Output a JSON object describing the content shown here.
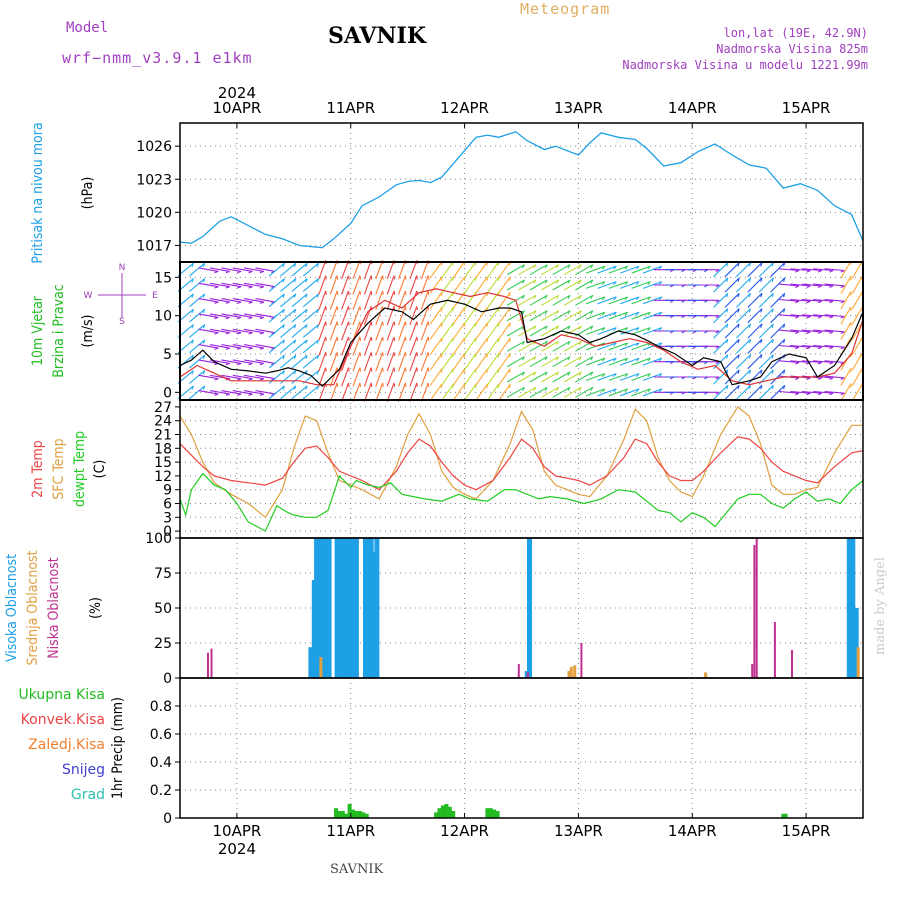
{
  "header": {
    "model_label": "Model",
    "model_value": "wrf−nmm_v3.9.1 e1km",
    "station": "SAVNIK",
    "title": "Meteogram",
    "lonlat": "lon,lat (19E, 42.9N)",
    "elevation": "Nadmorska Visina 825m",
    "elevation_model": "Nadmorska Visina u modelu 1221.99m"
  },
  "footer": {
    "station": "SAVNIK",
    "watermark": "made by Angel"
  },
  "colors": {
    "pressure": "#1ea0e6",
    "temp2m": "#ee4444",
    "sfc_temp": "#e0a040",
    "dewpoint": "#22cc22",
    "cloud_high": "#1ea0e6",
    "cloud_mid": "#e0a040",
    "cloud_low": "#c03090",
    "precip_total": "#22bb22",
    "wind_speed": "#000000",
    "gust": "#dd3333"
  },
  "chart_data": [
    {
      "type": "line",
      "name_key": "pressure",
      "ylabel_colored": "Pritisak na nivou mora",
      "ylabel_unit": "(hPa)",
      "ylim": [
        1015.5,
        1028.1
      ],
      "yticks": [
        1017,
        1020,
        1023,
        1026
      ],
      "xlim": [
        0,
        6
      ],
      "xticks": [
        {
          "x": 0.5,
          "top": "10APR",
          "bottom": "10APR"
        },
        {
          "x": 1.5,
          "top": "11APR",
          "bottom": "11APR"
        },
        {
          "x": 2.5,
          "top": "12APR",
          "bottom": "12APR"
        },
        {
          "x": 3.5,
          "top": "13APR",
          "bottom": "13APR"
        },
        {
          "x": 4.5,
          "top": "14APR",
          "bottom": "14APR"
        },
        {
          "x": 5.5,
          "top": "15APR",
          "bottom": "15APR"
        }
      ],
      "year": "2024",
      "x_note": "x = days since 10 APR 00 UTC minus 0.5 offset; x=0.5 is 10APR 00h",
      "x": [
        0,
        0.1,
        0.2,
        0.35,
        0.45,
        0.6,
        0.75,
        0.9,
        1.05,
        1.25,
        1.35,
        1.5,
        1.6,
        1.75,
        1.9,
        2.0,
        2.1,
        2.2,
        2.3,
        2.45,
        2.6,
        2.7,
        2.8,
        2.95,
        3.05,
        3.2,
        3.3,
        3.4,
        3.5,
        3.6,
        3.7,
        3.85,
        4.0,
        4.1,
        4.25,
        4.4,
        4.55,
        4.7,
        4.85,
        5.0,
        5.15,
        5.3,
        5.45,
        5.6,
        5.75,
        5.9,
        6.0
      ],
      "y": [
        1017.3,
        1017.2,
        1017.8,
        1019.2,
        1019.6,
        1018.8,
        1018.0,
        1017.6,
        1017.0,
        1016.8,
        1017.6,
        1019.0,
        1020.6,
        1021.4,
        1022.5,
        1022.8,
        1022.9,
        1022.7,
        1023.2,
        1025.0,
        1026.8,
        1027.0,
        1026.8,
        1027.3,
        1026.5,
        1025.7,
        1026.0,
        1025.6,
        1025.2,
        1026.3,
        1027.2,
        1026.8,
        1026.6,
        1025.8,
        1024.2,
        1024.5,
        1025.5,
        1026.2,
        1025.2,
        1024.3,
        1024.0,
        1022.2,
        1022.6,
        1022.0,
        1020.6,
        1019.8,
        1017.4
      ]
    },
    {
      "type": "line",
      "name_key": "wind",
      "ylabel_colored_1": "10m Vjetar",
      "ylabel_colored_2": "Brzina i Pravac",
      "ylabel_unit": "(m/s)",
      "ylim": [
        -1,
        17
      ],
      "yticks": [
        0,
        5,
        10,
        15
      ],
      "legend_compass": [
        "N",
        "W",
        "E",
        "S"
      ],
      "series": [
        {
          "name": "speed",
          "x": [
            0,
            0.1,
            0.2,
            0.3,
            0.45,
            0.6,
            0.75,
            0.85,
            0.95,
            1.05,
            1.15,
            1.25,
            1.4,
            1.5,
            1.65,
            1.8,
            1.95,
            2.05,
            2.2,
            2.35,
            2.5,
            2.65,
            2.8,
            2.9,
            3.0,
            3.05,
            3.2,
            3.35,
            3.5,
            3.6,
            3.7,
            3.85,
            4.0,
            4.1,
            4.2,
            4.35,
            4.5,
            4.6,
            4.75,
            4.85,
            5.0,
            5.1,
            5.2,
            5.35,
            5.5,
            5.6,
            5.75,
            5.9,
            6.0
          ],
          "y": [
            3.5,
            4.2,
            5.5,
            4.0,
            3.0,
            2.8,
            2.5,
            2.8,
            3.2,
            2.8,
            2.2,
            0.8,
            3.0,
            6.5,
            9.0,
            11.0,
            10.5,
            9.5,
            11.5,
            12.0,
            11.5,
            10.5,
            11.0,
            11.0,
            10.5,
            6.5,
            7.0,
            8.0,
            7.5,
            6.5,
            7.0,
            8.0,
            7.5,
            6.8,
            6.0,
            5.0,
            3.5,
            4.5,
            4.0,
            1.0,
            1.5,
            2.0,
            4.0,
            5.0,
            4.5,
            2.0,
            3.5,
            7.0,
            10.5
          ]
        },
        {
          "name": "gust",
          "x": [
            0,
            0.15,
            0.3,
            0.45,
            0.6,
            0.75,
            0.9,
            1.05,
            1.2,
            1.35,
            1.5,
            1.65,
            1.8,
            1.95,
            2.1,
            2.25,
            2.4,
            2.55,
            2.7,
            2.85,
            2.95,
            3.05,
            3.2,
            3.35,
            3.5,
            3.65,
            3.8,
            3.95,
            4.1,
            4.25,
            4.4,
            4.55,
            4.7,
            4.85,
            5.0,
            5.15,
            5.3,
            5.45,
            5.6,
            5.75,
            5.9,
            6.0
          ],
          "y": [
            2.0,
            3.5,
            2.5,
            1.5,
            1.5,
            1.5,
            1.5,
            1.5,
            1.0,
            1.0,
            6.0,
            10.5,
            12.0,
            11.0,
            13.0,
            13.5,
            13.0,
            12.5,
            13.0,
            12.5,
            12.0,
            7.0,
            6.0,
            7.5,
            7.0,
            6.0,
            6.5,
            7.0,
            6.5,
            5.5,
            4.0,
            3.0,
            3.5,
            1.5,
            1.0,
            1.5,
            2.0,
            2.0,
            2.0,
            2.5,
            5.0,
            9.5
          ]
        }
      ]
    },
    {
      "type": "line",
      "name_key": "temperature",
      "ylabel_colored_1": "2m Temp",
      "ylabel_colored_2": "SFC Temp",
      "ylabel_colored_3": "dewpt Temp",
      "ylabel_unit": "(C)",
      "ylim": [
        -1.5,
        28.5
      ],
      "yticks": [
        0,
        3,
        6,
        9,
        12,
        15,
        18,
        21,
        24,
        27
      ],
      "series": [
        {
          "name": "2m",
          "x": [
            0,
            0.1,
            0.2,
            0.3,
            0.45,
            0.6,
            0.75,
            0.9,
            1.0,
            1.1,
            1.2,
            1.3,
            1.4,
            1.5,
            1.6,
            1.75,
            1.9,
            2.0,
            2.1,
            2.2,
            2.3,
            2.4,
            2.5,
            2.6,
            2.75,
            2.9,
            3.0,
            3.1,
            3.2,
            3.3,
            3.4,
            3.5,
            3.6,
            3.75,
            3.9,
            4.0,
            4.1,
            4.2,
            4.3,
            4.4,
            4.5,
            4.6,
            4.75,
            4.9,
            5.0,
            5.1,
            5.2,
            5.3,
            5.4,
            5.5,
            5.6,
            5.75,
            5.9,
            6.0
          ],
          "y": [
            19.0,
            16.5,
            14.0,
            12.0,
            11.0,
            10.5,
            10.0,
            11.5,
            15.0,
            18.0,
            18.5,
            16.0,
            13.0,
            12.0,
            11.0,
            9.0,
            13.0,
            17.0,
            20.0,
            18.5,
            15.0,
            12.0,
            10.0,
            9.0,
            11.0,
            16.0,
            20.0,
            18.0,
            14.0,
            12.0,
            11.5,
            11.0,
            10.0,
            12.0,
            16.0,
            20.0,
            19.0,
            15.0,
            12.0,
            11.0,
            11.0,
            13.0,
            17.0,
            20.5,
            20.0,
            18.0,
            15.0,
            13.0,
            12.0,
            11.0,
            10.5,
            14.0,
            17.0,
            17.5
          ]
        },
        {
          "name": "sfc",
          "x": [
            0,
            0.1,
            0.2,
            0.3,
            0.45,
            0.6,
            0.75,
            0.9,
            1.0,
            1.1,
            1.2,
            1.3,
            1.4,
            1.5,
            1.6,
            1.75,
            1.9,
            2.0,
            2.1,
            2.2,
            2.3,
            2.4,
            2.5,
            2.6,
            2.75,
            2.9,
            3.0,
            3.1,
            3.2,
            3.3,
            3.4,
            3.5,
            3.6,
            3.75,
            3.9,
            4.0,
            4.1,
            4.2,
            4.3,
            4.4,
            4.5,
            4.6,
            4.75,
            4.9,
            5.0,
            5.1,
            5.2,
            5.3,
            5.4,
            5.5,
            5.6,
            5.75,
            5.9,
            6.0
          ],
          "y": [
            25.0,
            21.0,
            15.0,
            10.5,
            8.0,
            6.0,
            3.0,
            9.0,
            18.0,
            25.0,
            24.0,
            17.0,
            11.0,
            10.0,
            9.0,
            7.0,
            14.0,
            21.0,
            25.5,
            21.0,
            13.0,
            9.5,
            8.0,
            7.0,
            11.0,
            19.0,
            26.0,
            22.0,
            13.0,
            10.0,
            9.0,
            8.0,
            7.5,
            12.0,
            20.0,
            26.5,
            24.0,
            16.0,
            11.0,
            8.5,
            7.5,
            12.0,
            21.0,
            27.0,
            25.0,
            19.0,
            10.0,
            8.0,
            8.0,
            9.0,
            9.5,
            17.0,
            23.0,
            23.0
          ]
        },
        {
          "name": "dewpt",
          "x": [
            0,
            0.05,
            0.1,
            0.2,
            0.3,
            0.4,
            0.5,
            0.6,
            0.75,
            0.85,
            0.95,
            1.0,
            1.1,
            1.2,
            1.3,
            1.4,
            1.5,
            1.55,
            1.65,
            1.75,
            1.85,
            1.95,
            2.05,
            2.15,
            2.3,
            2.45,
            2.55,
            2.7,
            2.85,
            2.95,
            3.05,
            3.15,
            3.25,
            3.4,
            3.55,
            3.7,
            3.85,
            4.0,
            4.1,
            4.2,
            4.3,
            4.4,
            4.5,
            4.6,
            4.7,
            4.8,
            4.9,
            5.0,
            5.1,
            5.2,
            5.3,
            5.4,
            5.5,
            5.6,
            5.7,
            5.8,
            5.9,
            6.0
          ],
          "y": [
            7.0,
            3.5,
            9.0,
            12.5,
            10.0,
            9.0,
            6.0,
            2.0,
            0.0,
            5.5,
            4.0,
            3.5,
            3.0,
            3.0,
            4.5,
            12.0,
            9.5,
            11.0,
            10.0,
            9.5,
            10.5,
            8.0,
            7.5,
            7.0,
            6.5,
            8.0,
            7.0,
            6.5,
            9.0,
            9.0,
            8.0,
            7.0,
            7.5,
            7.0,
            6.0,
            7.0,
            9.0,
            8.5,
            6.5,
            4.5,
            4.0,
            2.0,
            4.0,
            3.0,
            1.0,
            4.0,
            7.0,
            8.0,
            8.0,
            6.0,
            5.0,
            7.0,
            8.5,
            6.5,
            7.0,
            6.0,
            9.0,
            11.0
          ]
        }
      ]
    },
    {
      "type": "bar",
      "name_key": "clouds",
      "ylabel_colored_1": "Visoka Oblacnost",
      "ylabel_colored_2": "Srednja Oblacnost",
      "ylabel_colored_3": "Niska Oblacnost",
      "ylabel_unit": "(%)",
      "ylim": [
        0,
        100
      ],
      "yticks": [
        0,
        25,
        50,
        75,
        100
      ],
      "high": [
        [
          1.15,
          22
        ],
        [
          1.18,
          70
        ],
        [
          1.2,
          100
        ],
        [
          1.23,
          100
        ],
        [
          1.25,
          100
        ],
        [
          1.28,
          100
        ],
        [
          1.31,
          100
        ],
        [
          1.38,
          100
        ],
        [
          1.41,
          100
        ],
        [
          1.44,
          100
        ],
        [
          1.47,
          100
        ],
        [
          1.5,
          100
        ],
        [
          1.53,
          100
        ],
        [
          1.55,
          100
        ],
        [
          1.63,
          100
        ],
        [
          1.66,
          100
        ],
        [
          1.68,
          100
        ],
        [
          1.71,
          90
        ],
        [
          1.73,
          100
        ],
        [
          3.07,
          100
        ],
        [
          3.05,
          5
        ],
        [
          5.88,
          100
        ],
        [
          5.91,
          100
        ],
        [
          5.94,
          50
        ]
      ],
      "mid": [
        [
          1.22,
          15
        ],
        [
          3.4,
          5
        ],
        [
          3.42,
          8
        ],
        [
          3.45,
          9
        ],
        [
          4.6,
          4
        ],
        [
          5.94,
          22
        ]
      ],
      "low": [
        [
          0.22,
          18
        ],
        [
          0.25,
          21
        ],
        [
          2.95,
          10
        ],
        [
          3.5,
          25
        ],
        [
          3.03,
          4
        ],
        [
          5.0,
          10
        ],
        [
          5.02,
          95
        ],
        [
          5.04,
          100
        ],
        [
          5.2,
          40
        ],
        [
          5.35,
          20
        ]
      ]
    },
    {
      "type": "bar",
      "name_key": "precip",
      "legend": [
        "Ukupna Kisa",
        "Konvek.Kisa",
        "Zaledj.Kisa",
        "Snijeg",
        "Grad"
      ],
      "legend_colors": [
        "#22bb22",
        "#ee4444",
        "#f08030",
        "#4040d0",
        "#30c0b0"
      ],
      "ylabel": "1hr Precip (mm)",
      "ylim": [
        0,
        1.0
      ],
      "yticks": [
        0,
        0.2,
        0.4,
        0.6,
        0.8
      ],
      "total": [
        [
          1.37,
          0.07
        ],
        [
          1.4,
          0.05
        ],
        [
          1.43,
          0.05
        ],
        [
          1.46,
          0.03
        ],
        [
          1.49,
          0.1
        ],
        [
          1.52,
          0.06
        ],
        [
          1.55,
          0.05
        ],
        [
          1.58,
          0.05
        ],
        [
          1.61,
          0.04
        ],
        [
          1.64,
          0.03
        ],
        [
          2.25,
          0.04
        ],
        [
          2.28,
          0.07
        ],
        [
          2.31,
          0.09
        ],
        [
          2.34,
          0.1
        ],
        [
          2.37,
          0.08
        ],
        [
          2.4,
          0.05
        ],
        [
          2.7,
          0.07
        ],
        [
          2.73,
          0.07
        ],
        [
          2.76,
          0.06
        ],
        [
          2.79,
          0.05
        ],
        [
          5.3,
          0.03
        ],
        [
          5.32,
          0.03
        ]
      ]
    }
  ]
}
